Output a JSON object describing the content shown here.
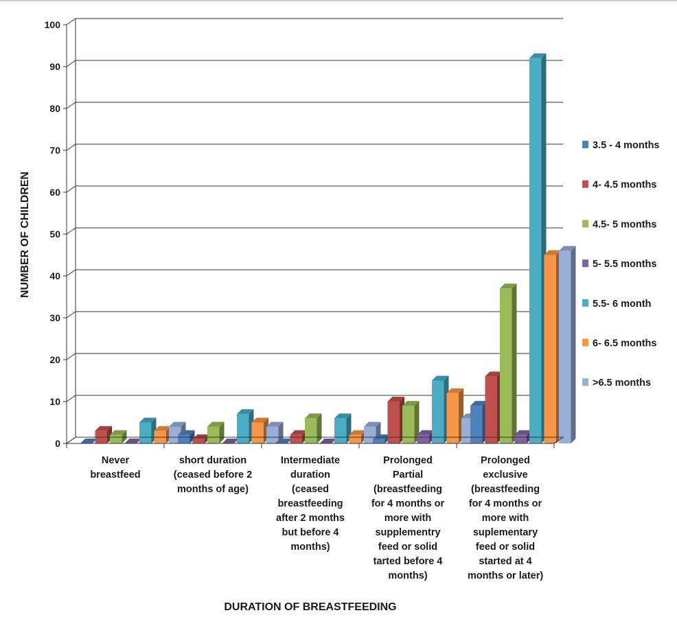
{
  "chart_data": {
    "type": "bar",
    "title": "",
    "xlabel": "DURATION OF BREASTFEEDING",
    "ylabel": "NUMBER OF CHILDREN",
    "ylim": [
      0,
      100
    ],
    "yticks": [
      0,
      10,
      20,
      30,
      40,
      50,
      60,
      70,
      80,
      90,
      100
    ],
    "grid": true,
    "legend_position": "right",
    "categories": [
      [
        "Never",
        "breastfeed"
      ],
      [
        "short duration",
        "(ceased before 2",
        "months of age)"
      ],
      [
        "Intermediate",
        "duration",
        "(ceased",
        "breastfeeding",
        "after 2 months",
        "but before 4",
        "months)"
      ],
      [
        "Prolonged",
        "Partial",
        "(breastfeeding",
        "for 4 months or",
        "more with",
        "supplementry",
        "feed or solid",
        "tarted before 4",
        "months)"
      ],
      [
        "Prolonged",
        "exclusive",
        "(breastfeeding",
        "for 4 months or",
        "more with",
        "suplementary",
        "feed or solid",
        "started at 4",
        "months or later)"
      ]
    ],
    "series": [
      {
        "name": "3.5 - 4 months",
        "color": "#4f81bd",
        "values": [
          0,
          2,
          0,
          1,
          9
        ]
      },
      {
        "name": "4- 4.5 months",
        "color": "#c0504d",
        "values": [
          3,
          1,
          2,
          10,
          16
        ]
      },
      {
        "name": "4.5- 5 months",
        "color": "#9bbb59",
        "values": [
          2,
          4,
          6,
          9,
          37
        ]
      },
      {
        "name": "5- 5.5 months",
        "color": "#8064a2",
        "values": [
          0,
          0,
          0,
          2,
          2
        ]
      },
      {
        "name": "5.5- 6 month",
        "color": "#4bacc6",
        "values": [
          5,
          7,
          6,
          15,
          92
        ]
      },
      {
        "name": "6- 6.5 months",
        "color": "#f79646",
        "values": [
          3,
          5,
          2,
          12,
          45
        ]
      },
      {
        "name": ">6.5 months",
        "color": "#9aafd8",
        "values": [
          4,
          4,
          4,
          6,
          46
        ]
      }
    ]
  }
}
